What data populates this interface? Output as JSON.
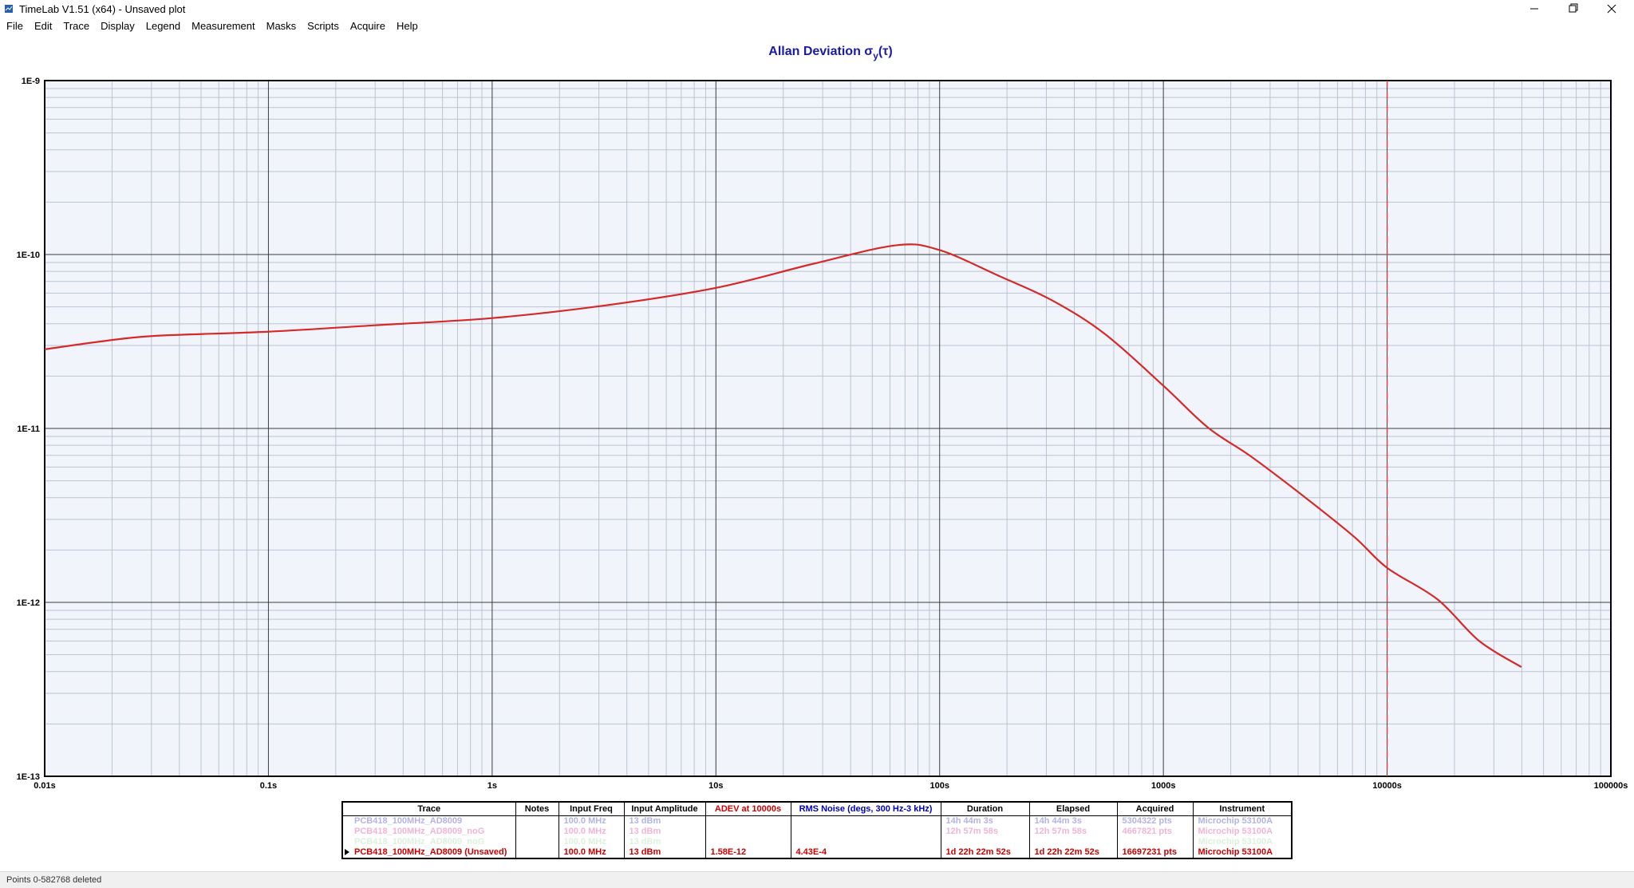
{
  "window": {
    "title": "TimeLab V1.51 (x64) - Unsaved plot"
  },
  "menu": [
    "File",
    "Edit",
    "Trace",
    "Display",
    "Legend",
    "Measurement",
    "Masks",
    "Scripts",
    "Acquire",
    "Help"
  ],
  "chart_data": {
    "type": "line",
    "title": [
      "Allan Deviation σ",
      "y",
      "(τ)"
    ],
    "x": [
      0.01,
      0.0184,
      0.0315,
      0.1,
      0.3,
      1,
      3.18,
      10,
      27.1,
      64,
      100,
      186,
      318,
      545,
      1000,
      1585,
      2432,
      4168,
      7130,
      10000,
      16800,
      25800,
      39800
    ],
    "series": [
      {
        "color": "#d42a2a",
        "values": [
          2.85e-11,
          3.18e-11,
          3.41e-11,
          3.6e-11,
          3.92e-11,
          4.31e-11,
          5.09e-11,
          6.43e-11,
          8.83e-11,
          1.13e-10,
          1.06e-10,
          7.49e-11,
          5.45e-11,
          3.51e-11,
          1.76e-11,
          1.01e-11,
          6.98e-12,
          4.14e-12,
          2.38e-12,
          1.58e-12,
          1.04e-12,
          6e-13,
          4.25e-13
        ]
      }
    ],
    "xlim": [
      0.01,
      100000
    ],
    "ylim": [
      1e-13,
      1e-09
    ],
    "xticks": [
      {
        "value": 0.01,
        "label": "0.01s"
      },
      {
        "value": 0.1,
        "label": "0.1s"
      },
      {
        "value": 1,
        "label": "1s"
      },
      {
        "value": 10,
        "label": "10s"
      },
      {
        "value": 100,
        "label": "100s"
      },
      {
        "value": 1000,
        "label": "1000s"
      },
      {
        "value": 10000,
        "label": "10000s"
      },
      {
        "value": 100000,
        "label": "100000s"
      }
    ],
    "yticks": [
      {
        "value": 1e-13,
        "label": "1E-13"
      },
      {
        "value": 1e-12,
        "label": "1E-12"
      },
      {
        "value": 1e-11,
        "label": "1E-11"
      },
      {
        "value": 1e-10,
        "label": "1E-10"
      },
      {
        "value": 1e-09,
        "label": "1E-9"
      }
    ],
    "xlog": true,
    "ylog": true,
    "grid": true,
    "marker_x": 10000,
    "marker_color": "#d04848"
  },
  "table": {
    "headers": [
      "Trace",
      "Notes",
      "Input Freq",
      "Input Amplitude",
      "ADEV at 10000s",
      "RMS Noise (degs, 300 Hz-3 kHz)",
      "Duration",
      "Elapsed",
      "Acquired",
      "Instrument"
    ],
    "rows": [
      {
        "color": "#b4b4e4",
        "cells": [
          "PCB418_100MHz_AD8009",
          null,
          "100.0 MHz",
          "13 dBm",
          null,
          null,
          "14h 44m 3s",
          "14h 44m 3s",
          "5304322 pts",
          "Microchip 53100A"
        ]
      },
      {
        "color": "#f2b4d4",
        "cells": [
          "PCB418_100MHz_AD8009_noG",
          null,
          "100.0 MHz",
          "13 dBm",
          null,
          null,
          "12h 57m 58s",
          "12h 57m 58s",
          "4667821 pts",
          "Microchip 53100A"
        ]
      },
      {
        "color": "#ddf0dd",
        "cells": [
          "PCB418_100MHz_AD8009_noG",
          null,
          "100.0 MHz",
          "13 dBm",
          null,
          null,
          null,
          null,
          null,
          "Microchip 53100A"
        ]
      },
      {
        "color": "#cc0000",
        "cells": [
          "PCB418_100MHz_AD8009 (Unsaved)",
          null,
          "100.0 MHz",
          "13 dBm",
          "1.58E-12",
          "4.43E-4",
          "1d 22h 22m 52s",
          "1d 22h 22m 52s",
          "16697231 pts",
          "Microchip 53100A"
        ]
      }
    ]
  },
  "status": "Points 0-582768 deleted"
}
